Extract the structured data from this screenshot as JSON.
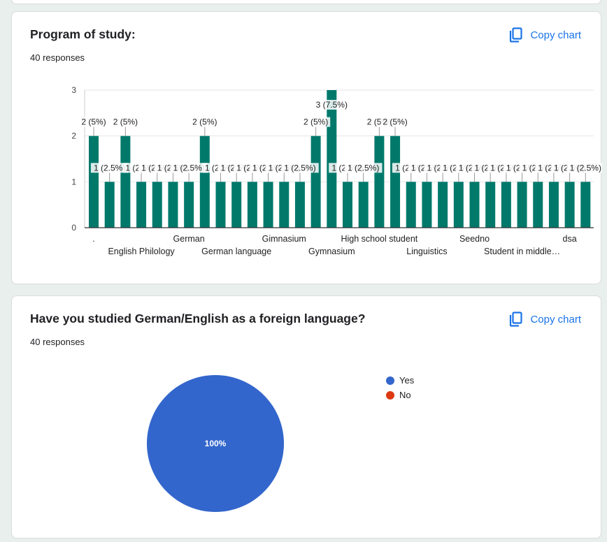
{
  "colors": {
    "bar": "#00796b",
    "accent": "#1a73e8",
    "yes": "#3366cc",
    "no": "#dc3912"
  },
  "card1": {
    "title": "Program of study:",
    "subtitle": "40 responses",
    "copy_label": "Copy chart",
    "copy_icon": "copy-icon"
  },
  "card2": {
    "title": "Have you studied German/English as a foreign language?",
    "subtitle": "40 responses",
    "copy_label": "Copy chart",
    "copy_icon": "copy-icon"
  },
  "chart_data": [
    {
      "type": "bar",
      "title": "Program of study:",
      "ylim": [
        0,
        3
      ],
      "yticks": [
        "0",
        "1",
        "2",
        "3"
      ],
      "grid": true,
      "values": [
        2,
        1,
        2,
        1,
        1,
        1,
        1,
        2,
        1,
        1,
        1,
        1,
        1,
        1,
        2,
        3,
        1,
        1,
        2,
        2,
        1,
        1,
        1,
        1,
        1,
        1,
        1,
        1,
        1,
        1,
        1,
        1
      ],
      "data_labels": [
        "2 (5%)",
        "1 (2.5%)",
        "2 (5%)",
        "1 (2.5%)",
        "1 (2.5%)",
        "1 (2.5%)",
        "1 (2.5%)",
        "2 (5%)",
        "1 (2.5%)",
        "1 (2.5%)",
        "1 (2.5%)",
        "1 (2.5%)",
        "1 (2.5%)",
        "1 (2.5%)",
        "2 (5%)",
        "3 (7.5%)",
        "1 (2.5%)",
        "1 (2.5%)",
        "2 (5%)",
        "2 (5%)",
        "1 (2.5%)",
        "1 (2.5%)",
        "1 (2.5%)",
        "1 (2.5%)",
        "1 (2.5%)",
        "1 (2.5%)",
        "1 (2.5%)",
        "1 (2.5%)",
        "1 (2.5%)",
        "1 (2.5%)",
        "1 (2.5%)",
        "1 (2.5%)"
      ],
      "category_labels": [
        {
          "index": 0,
          "text": ".",
          "row": 1
        },
        {
          "index": 3,
          "text": "English Philology",
          "row": 2
        },
        {
          "index": 6,
          "text": "German",
          "row": 1
        },
        {
          "index": 9,
          "text": "German language",
          "row": 2
        },
        {
          "index": 12,
          "text": "Gimnasium",
          "row": 1
        },
        {
          "index": 15,
          "text": "Gymnasium",
          "row": 2
        },
        {
          "index": 18,
          "text": "High school student",
          "row": 1
        },
        {
          "index": 21,
          "text": "Linguistics",
          "row": 2
        },
        {
          "index": 24,
          "text": "Seedno",
          "row": 1
        },
        {
          "index": 27,
          "text": "Student in middle…",
          "row": 2
        },
        {
          "index": 30,
          "text": "dsa",
          "row": 1
        }
      ]
    },
    {
      "type": "pie",
      "title": "Have you studied German/English as a foreign language?",
      "categories": [
        "Yes",
        "No"
      ],
      "values": [
        40,
        0
      ],
      "slice_label": "100%",
      "legend_position": "right"
    }
  ]
}
